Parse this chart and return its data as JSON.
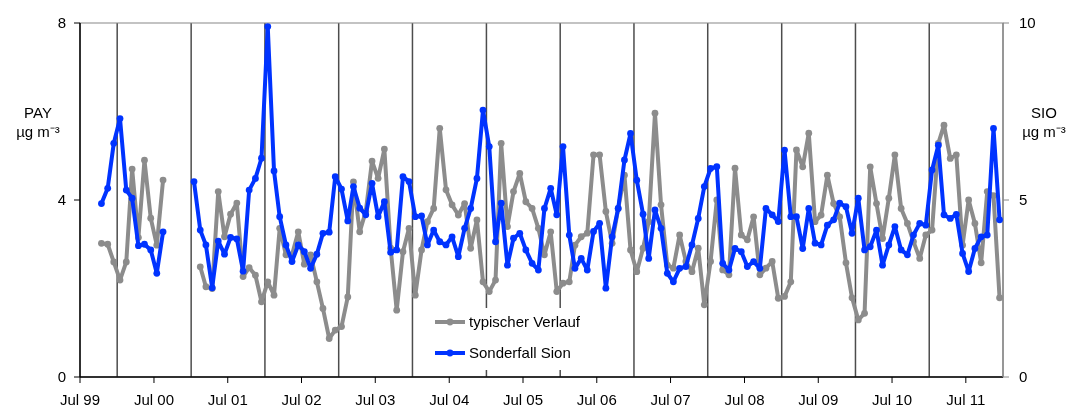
{
  "chart_data": {
    "type": "line",
    "ylabel": "PAY µg m⁻³",
    "y2label": "SIO µg m⁻³",
    "xlim": [
      "1999-07-01",
      "2012-01-01"
    ],
    "xticks": [
      {
        "value": "1999-07-01",
        "label": "Jul 99"
      },
      {
        "value": "2000-07-01",
        "label": "Jul 00"
      },
      {
        "value": "2001-07-01",
        "label": "Jul 01"
      },
      {
        "value": "2002-07-01",
        "label": "Jul 02"
      },
      {
        "value": "2003-07-01",
        "label": "Jul 03"
      },
      {
        "value": "2004-07-01",
        "label": "Jul 04"
      },
      {
        "value": "2005-07-01",
        "label": "Jul 05"
      },
      {
        "value": "2006-07-01",
        "label": "Jul 06"
      },
      {
        "value": "2007-07-01",
        "label": "Jul 07"
      },
      {
        "value": "2008-07-01",
        "label": "Jul 08"
      },
      {
        "value": "2009-07-01",
        "label": "Jul 09"
      },
      {
        "value": "2010-07-01",
        "label": "Jul 10"
      },
      {
        "value": "2011-07-01",
        "label": "Jul 11"
      }
    ],
    "ylim": [
      0,
      8
    ],
    "yticks": [
      0,
      4,
      8
    ],
    "y2lim": [
      0,
      10
    ],
    "y2ticks": [
      0,
      5,
      10
    ],
    "x": [
      "1999-10-15",
      "1999-11-15",
      "1999-12-15",
      "2000-01-15",
      "2000-02-15",
      "2000-03-15",
      "2000-04-15",
      "2000-05-15",
      "2000-06-15",
      "2000-07-15",
      "2000-08-15",
      "2000-09-15",
      "2000-10-15",
      "2000-11-15",
      "2000-12-15",
      "2001-01-15",
      "2001-02-15",
      "2001-03-15",
      "2001-04-15",
      "2001-05-15",
      "2001-06-15",
      "2001-07-15",
      "2001-08-15",
      "2001-09-15",
      "2001-10-15",
      "2001-11-15",
      "2001-12-15",
      "2002-01-15",
      "2002-02-15",
      "2002-03-15",
      "2002-04-15",
      "2002-05-15",
      "2002-06-15",
      "2002-07-15",
      "2002-08-15",
      "2002-09-15",
      "2002-10-15",
      "2002-11-15",
      "2002-12-15",
      "2003-01-15",
      "2003-02-15",
      "2003-03-15",
      "2003-04-15",
      "2003-05-15",
      "2003-06-15",
      "2003-07-15",
      "2003-08-15",
      "2003-09-15",
      "2003-10-15",
      "2003-11-15",
      "2003-12-15",
      "2004-01-15",
      "2004-02-15",
      "2004-03-15",
      "2004-04-15",
      "2004-05-15",
      "2004-06-15",
      "2004-07-15",
      "2004-08-15",
      "2004-09-15",
      "2004-10-15",
      "2004-11-15",
      "2004-12-15",
      "2005-01-15",
      "2005-02-15",
      "2005-03-15",
      "2005-04-15",
      "2005-05-15",
      "2005-06-15",
      "2005-07-15",
      "2005-08-15",
      "2005-09-15",
      "2005-10-15",
      "2005-11-15",
      "2005-12-15",
      "2006-01-15",
      "2006-02-15",
      "2006-03-15",
      "2006-04-15",
      "2006-05-15",
      "2006-06-15",
      "2006-07-15",
      "2006-08-15",
      "2006-09-15",
      "2006-10-15",
      "2006-11-15",
      "2006-12-15",
      "2007-01-15",
      "2007-02-15",
      "2007-03-15",
      "2007-04-15",
      "2007-05-15",
      "2007-06-15",
      "2007-07-15",
      "2007-08-15",
      "2007-09-15",
      "2007-10-15",
      "2007-11-15",
      "2007-12-15",
      "2008-01-15",
      "2008-02-15",
      "2008-03-15",
      "2008-04-15",
      "2008-05-15",
      "2008-06-15",
      "2008-07-15",
      "2008-08-15",
      "2008-09-15",
      "2008-10-15",
      "2008-11-15",
      "2008-12-15",
      "2009-01-15",
      "2009-02-15",
      "2009-03-15",
      "2009-04-15",
      "2009-05-15",
      "2009-06-15",
      "2009-07-15",
      "2009-08-15",
      "2009-09-15",
      "2009-10-15",
      "2009-11-15",
      "2009-12-15",
      "2010-01-15",
      "2010-02-15",
      "2010-03-15",
      "2010-04-15",
      "2010-05-15",
      "2010-06-15",
      "2010-07-15",
      "2010-08-15",
      "2010-09-15",
      "2010-10-15",
      "2010-11-15",
      "2010-12-15",
      "2011-01-15",
      "2011-02-15",
      "2011-03-15",
      "2011-04-15",
      "2011-05-15",
      "2011-06-15",
      "2011-07-15",
      "2011-08-15",
      "2011-09-15",
      "2011-10-15",
      "2011-11-15",
      "2011-12-15"
    ],
    "series": [
      {
        "name": "typischer Verlauf",
        "color": "#8c8c8c",
        "values": [
          3.02,
          3.0,
          2.6,
          2.19,
          2.6,
          4.7,
          3.15,
          4.9,
          3.59,
          2.98,
          4.45,
          null,
          null,
          null,
          null,
          null,
          2.49,
          2.04,
          2.0,
          4.19,
          3.17,
          3.68,
          3.93,
          2.27,
          2.47,
          2.3,
          1.7,
          2.15,
          1.85,
          3.36,
          2.76,
          2.76,
          3.28,
          2.55,
          2.76,
          2.15,
          1.55,
          0.87,
          1.06,
          1.14,
          1.81,
          4.41,
          3.28,
          3.74,
          4.88,
          4.49,
          5.15,
          2.91,
          1.51,
          2.83,
          3.36,
          1.85,
          2.87,
          3.51,
          3.81,
          5.62,
          4.23,
          3.89,
          3.66,
          3.92,
          2.91,
          3.55,
          2.15,
          1.93,
          2.19,
          5.28,
          3.4,
          4.19,
          4.6,
          3.96,
          3.81,
          3.36,
          2.76,
          3.28,
          1.93,
          2.12,
          2.15,
          2.98,
          3.17,
          3.25,
          5.02,
          5.02,
          3.74,
          3.02,
          3.81,
          4.56,
          2.87,
          2.38,
          2.91,
          3.51,
          5.96,
          3.89,
          2.53,
          2.46,
          3.21,
          2.61,
          2.38,
          2.91,
          1.63,
          2.61,
          4.0,
          2.42,
          2.31,
          4.72,
          3.21,
          3.1,
          3.62,
          2.31,
          2.46,
          2.61,
          1.78,
          1.82,
          2.15,
          5.13,
          4.75,
          5.51,
          3.51,
          3.66,
          4.56,
          3.92,
          3.62,
          2.58,
          1.79,
          1.29,
          1.44,
          4.75,
          3.92,
          3.13,
          4.04,
          5.02,
          3.81,
          3.47,
          3.06,
          2.68,
          3.21,
          3.32,
          5.28,
          5.69,
          4.94,
          5.02,
          2.98,
          4.0,
          3.47,
          2.58,
          4.19,
          4.1,
          1.79
        ]
      },
      {
        "name": "Sonderfall Sion",
        "color": "#0033ff",
        "axis": "y2",
        "values": [
          4.9,
          5.33,
          6.6,
          7.3,
          5.28,
          5.05,
          3.71,
          3.75,
          3.59,
          2.93,
          4.1,
          null,
          null,
          null,
          null,
          5.52,
          4.15,
          3.73,
          2.52,
          3.84,
          3.47,
          3.94,
          3.9,
          2.99,
          5.28,
          5.61,
          6.18,
          9.9,
          5.82,
          4.53,
          3.73,
          3.26,
          3.73,
          3.54,
          3.07,
          3.47,
          4.06,
          4.09,
          5.66,
          5.31,
          4.41,
          5.38,
          4.77,
          4.58,
          5.47,
          4.53,
          4.95,
          3.52,
          3.59,
          5.66,
          5.52,
          4.53,
          4.55,
          3.73,
          4.15,
          3.82,
          3.73,
          3.96,
          3.4,
          4.2,
          4.76,
          5.61,
          7.54,
          6.51,
          3.82,
          4.91,
          3.16,
          3.92,
          4.06,
          3.59,
          3.21,
          3.02,
          4.76,
          5.33,
          4.58,
          6.51,
          4.01,
          3.07,
          3.35,
          3.02,
          4.11,
          4.34,
          2.51,
          3.96,
          4.76,
          6.13,
          6.88,
          5.56,
          4.6,
          3.35,
          4.72,
          4.2,
          2.93,
          2.69,
          3.07,
          3.12,
          3.73,
          4.48,
          5.38,
          5.89,
          5.94,
          3.21,
          3.02,
          3.63,
          3.54,
          3.12,
          3.26,
          3.07,
          4.76,
          4.58,
          4.39,
          6.41,
          4.53,
          4.53,
          3.63,
          4.76,
          3.78,
          3.73,
          4.29,
          4.44,
          4.91,
          4.81,
          4.06,
          5.05,
          3.59,
          3.68,
          4.15,
          3.16,
          3.73,
          4.25,
          3.59,
          3.45,
          4.01,
          4.34,
          4.29,
          5.85,
          6.55,
          4.58,
          4.48,
          4.59,
          3.49,
          2.98,
          3.63,
          3.96,
          4.01,
          7.02,
          4.44
        ]
      }
    ],
    "ref_lines": [
      {
        "axis": "x",
        "value": "2000-01-01",
        "color": "#4d4d4d"
      },
      {
        "axis": "x",
        "value": "2001-01-01",
        "color": "#4d4d4d"
      },
      {
        "axis": "x",
        "value": "2002-01-01",
        "color": "#4d4d4d"
      },
      {
        "axis": "x",
        "value": "2003-01-01",
        "color": "#4d4d4d"
      },
      {
        "axis": "x",
        "value": "2004-01-01",
        "color": "#4d4d4d"
      },
      {
        "axis": "x",
        "value": "2005-01-01",
        "color": "#4d4d4d"
      },
      {
        "axis": "x",
        "value": "2006-01-01",
        "color": "#4d4d4d"
      },
      {
        "axis": "x",
        "value": "2007-01-01",
        "color": "#4d4d4d"
      },
      {
        "axis": "x",
        "value": "2008-01-01",
        "color": "#4d4d4d"
      },
      {
        "axis": "x",
        "value": "2009-01-01",
        "color": "#4d4d4d"
      },
      {
        "axis": "x",
        "value": "2010-01-01",
        "color": "#4d4d4d"
      },
      {
        "axis": "x",
        "value": "2011-01-01",
        "color": "#4d4d4d"
      }
    ],
    "marker": "circle",
    "line_style": "solid",
    "legend": "bottom",
    "grid": false
  }
}
